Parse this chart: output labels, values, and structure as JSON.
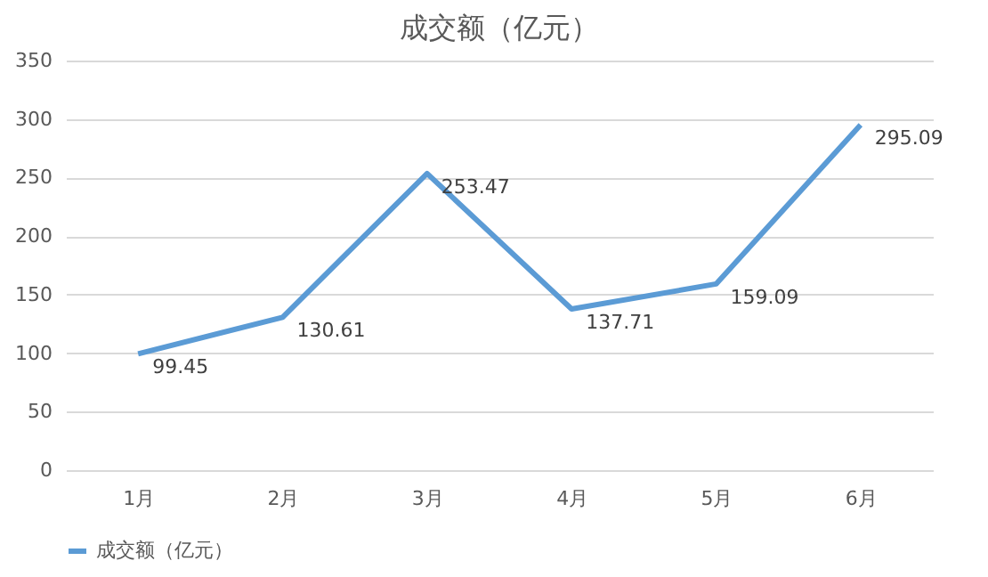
{
  "chart_data": {
    "type": "line",
    "title": "成交额（亿元）",
    "categories": [
      "1月",
      "2月",
      "3月",
      "4月",
      "5月",
      "6月"
    ],
    "series": [
      {
        "name": "成交额（亿元）",
        "color": "#5b9bd5",
        "values": [
          99.45,
          130.61,
          253.47,
          137.71,
          159.09,
          295.09
        ]
      }
    ],
    "ylim": [
      0,
      350
    ],
    "yticks": [
      0,
      50,
      100,
      150,
      200,
      250,
      300,
      350
    ],
    "grid": "y",
    "legend": "bottom",
    "data_labels": true,
    "marker": "none",
    "line_style": "solid"
  }
}
